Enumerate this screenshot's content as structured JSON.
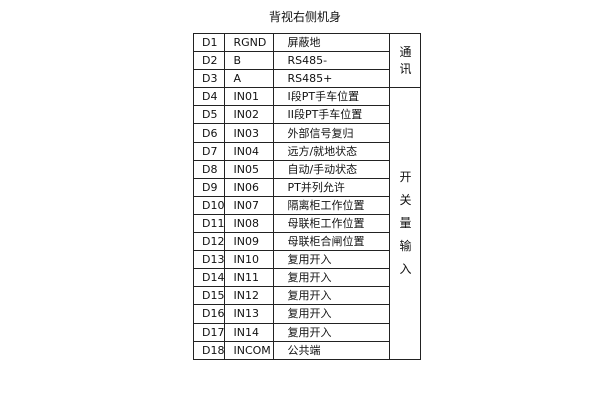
{
  "title": "背视右侧机身",
  "groups": [
    {
      "label": "通讯"
    },
    {
      "label": "开关量输入"
    }
  ],
  "rows": [
    [
      "D1",
      "RGND",
      "屏蔽地"
    ],
    [
      "D2",
      "B",
      "RS485-"
    ],
    [
      "D3",
      "A",
      "RS485+"
    ],
    [
      "D4",
      "IN01",
      "I段PT手车位置"
    ],
    [
      "D5",
      "IN02",
      "II段PT手车位置"
    ],
    [
      "D6",
      "IN03",
      "外部信号复归"
    ],
    [
      "D7",
      "IN04",
      "远方/就地状态"
    ],
    [
      "D8",
      "IN05",
      "自动/手动状态"
    ],
    [
      "D9",
      "IN06",
      "PT并列允许"
    ],
    [
      "D10",
      "IN07",
      "隔离柜工作位置"
    ],
    [
      "D11",
      "IN08",
      "母联柜工作位置"
    ],
    [
      "D12",
      "IN09",
      "母联柜合闸位置"
    ],
    [
      "D13",
      "IN10",
      "复用开入"
    ],
    [
      "D14",
      "IN11",
      "复用开入"
    ],
    [
      "D15",
      "IN12",
      "复用开入"
    ],
    [
      "D16",
      "IN13",
      "复用开入"
    ],
    [
      "D17",
      "IN14",
      "复用开入"
    ],
    [
      "D18",
      "INCOM",
      "公共端"
    ]
  ]
}
